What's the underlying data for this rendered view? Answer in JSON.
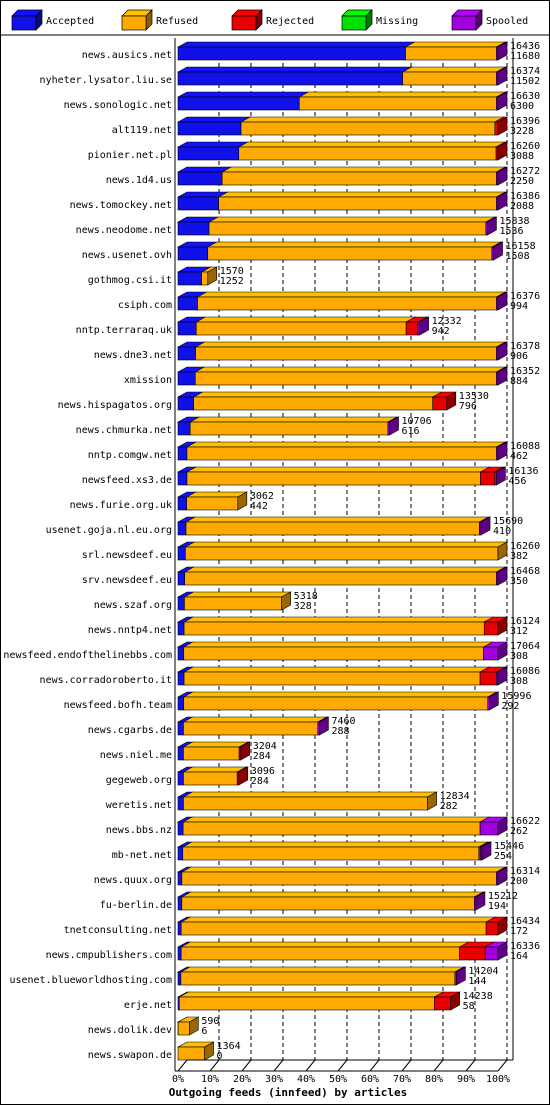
{
  "legend": [
    {
      "label": "Accepted",
      "color": "#1010e8"
    },
    {
      "label": "Refused",
      "color": "#ffaa00"
    },
    {
      "label": "Rejected",
      "color": "#e80000"
    },
    {
      "label": "Missing",
      "color": "#00e000"
    },
    {
      "label": "Spooled",
      "color": "#a000e0"
    }
  ],
  "chart_data": {
    "type": "bar",
    "orientation": "horizontal",
    "stacked": true,
    "xlabel": "Outgoing feeds (innfeed) by articles",
    "xlim": [
      0,
      100
    ],
    "x_ticks": [
      "0%",
      "10%",
      "20%",
      "30%",
      "40%",
      "50%",
      "60%",
      "70%",
      "80%",
      "90%",
      "100%"
    ],
    "grid": true,
    "legend_position": "top",
    "series_names": [
      "Accepted",
      "Refused",
      "Rejected",
      "Missing",
      "Spooled"
    ],
    "rows": [
      {
        "name": "news.ausics.net",
        "total": "16436",
        "accepted": "11680",
        "pct": [
          71.1,
          28.4,
          0,
          0,
          0.5
        ]
      },
      {
        "name": "nyheter.lysator.liu.se",
        "total": "16374",
        "accepted": "11502",
        "pct": [
          70.2,
          29.3,
          0,
          0,
          0.5
        ]
      },
      {
        "name": "news.sonologic.net",
        "total": "16630",
        "accepted": "6300",
        "pct": [
          37.9,
          61.6,
          0,
          0,
          0.5
        ]
      },
      {
        "name": "alt119.net",
        "total": "16396",
        "accepted": "3228",
        "pct": [
          19.7,
          79.3,
          1.0,
          0,
          0
        ]
      },
      {
        "name": "pionier.net.pl",
        "total": "16260",
        "accepted": "3088",
        "pct": [
          19.0,
          80.4,
          0.6,
          0,
          0
        ]
      },
      {
        "name": "news.1d4.us",
        "total": "16272",
        "accepted": "2250",
        "pct": [
          13.8,
          85.7,
          0,
          0,
          0.5
        ]
      },
      {
        "name": "news.tomockey.net",
        "total": "16386",
        "accepted": "2088",
        "pct": [
          12.7,
          86.8,
          0,
          0,
          0.5
        ]
      },
      {
        "name": "news.neodome.net",
        "total": "15838",
        "accepted": "1536",
        "pct": [
          9.7,
          86.5,
          0,
          0,
          0.5
        ]
      },
      {
        "name": "news.usenet.ovh",
        "total": "16158",
        "accepted": "1508",
        "pct": [
          9.3,
          88.8,
          0,
          0,
          0.5
        ]
      },
      {
        "name": "gothmog.csi.it",
        "total": "1570",
        "accepted": "1252",
        "pct": [
          7.4,
          1.9,
          0,
          0,
          0
        ]
      },
      {
        "name": "csiph.com",
        "total": "16376",
        "accepted": "994",
        "pct": [
          6.1,
          93.4,
          0,
          0,
          0.5
        ]
      },
      {
        "name": "nntp.terraraq.uk",
        "total": "12332",
        "accepted": "942",
        "pct": [
          5.7,
          65.6,
          3.7,
          0,
          0.5
        ]
      },
      {
        "name": "news.dne3.net",
        "total": "16378",
        "accepted": "906",
        "pct": [
          5.5,
          94.0,
          0,
          0,
          0.5
        ]
      },
      {
        "name": "xmission",
        "total": "16352",
        "accepted": "884",
        "pct": [
          5.4,
          94.1,
          0,
          0,
          0.5
        ]
      },
      {
        "name": "news.hispagatos.org",
        "total": "13530",
        "accepted": "796",
        "pct": [
          4.9,
          74.7,
          4.4,
          0,
          0
        ]
      },
      {
        "name": "news.chmurka.net",
        "total": "10706",
        "accepted": "616",
        "pct": [
          3.8,
          61.8,
          0,
          0,
          0.5
        ]
      },
      {
        "name": "nntp.comgw.net",
        "total": "16088",
        "accepted": "462",
        "pct": [
          2.8,
          96.7,
          0,
          0,
          0.5
        ]
      },
      {
        "name": "newsfeed.xs3.de",
        "total": "16136",
        "accepted": "456",
        "pct": [
          2.8,
          91.7,
          4.5,
          0,
          0.5
        ]
      },
      {
        "name": "news.furie.org.uk",
        "total": "3062",
        "accepted": "442",
        "pct": [
          2.7,
          16.0,
          0,
          0,
          0
        ]
      },
      {
        "name": "usenet.goja.nl.eu.org",
        "total": "15690",
        "accepted": "410",
        "pct": [
          2.5,
          91.7,
          0,
          0,
          0.5
        ]
      },
      {
        "name": "srl.newsdeef.eu",
        "total": "16260",
        "accepted": "382",
        "pct": [
          2.3,
          97.7,
          0,
          0,
          0
        ]
      },
      {
        "name": "srv.newsdeef.eu",
        "total": "16468",
        "accepted": "350",
        "pct": [
          2.1,
          97.4,
          0,
          0,
          0.5
        ]
      },
      {
        "name": "news.szaf.org",
        "total": "5318",
        "accepted": "328",
        "pct": [
          2.0,
          30.4,
          0,
          0,
          0
        ]
      },
      {
        "name": "news.nntp4.net",
        "total": "16124",
        "accepted": "312",
        "pct": [
          1.9,
          93.8,
          4.3,
          0,
          0
        ]
      },
      {
        "name": "newsfeed.endofthelinebbs.com",
        "total": "17064",
        "accepted": "308",
        "pct": [
          1.8,
          93.7,
          0,
          0,
          4.5
        ]
      },
      {
        "name": "news.corradoroberto.it",
        "total": "16086",
        "accepted": "308",
        "pct": [
          1.9,
          92.5,
          5.1,
          0,
          0.5
        ]
      },
      {
        "name": "newsfeed.bofh.team",
        "total": "15996",
        "accepted": "292",
        "pct": [
          1.8,
          95.0,
          0,
          0,
          0.5
        ]
      },
      {
        "name": "news.cgarbs.de",
        "total": "7460",
        "accepted": "288",
        "pct": [
          1.7,
          42.0,
          0,
          0,
          0.5
        ]
      },
      {
        "name": "news.niel.me",
        "total": "3204",
        "accepted": "284",
        "pct": [
          1.7,
          17.4,
          0.5,
          0,
          0
        ]
      },
      {
        "name": "gegeweb.org",
        "total": "3096",
        "accepted": "284",
        "pct": [
          1.7,
          16.8,
          0.5,
          0,
          0
        ]
      },
      {
        "name": "weretis.net",
        "total": "12834",
        "accepted": "282",
        "pct": [
          1.7,
          76.3,
          0,
          0,
          0
        ]
      },
      {
        "name": "news.bbs.nz",
        "total": "16622",
        "accepted": "262",
        "pct": [
          1.6,
          92.8,
          0,
          0,
          5.6
        ]
      },
      {
        "name": "mb-net.net",
        "total": "15446",
        "accepted": "254",
        "pct": [
          1.5,
          92.5,
          0.5,
          0,
          0.5
        ]
      },
      {
        "name": "news.quux.org",
        "total": "16314",
        "accepted": "200",
        "pct": [
          1.2,
          98.3,
          0,
          0,
          0.5
        ]
      },
      {
        "name": "fu-berlin.de",
        "total": "15212",
        "accepted": "194",
        "pct": [
          1.2,
          91.4,
          0,
          0,
          0.5
        ]
      },
      {
        "name": "tnetconsulting.net",
        "total": "16434",
        "accepted": "172",
        "pct": [
          1.0,
          95.3,
          3.7,
          0,
          0
        ]
      },
      {
        "name": "news.cmpublishers.com",
        "total": "16336",
        "accepted": "164",
        "pct": [
          1.0,
          87.0,
          8.0,
          0,
          4.0
        ]
      },
      {
        "name": "usenet.blueworldhosting.com",
        "total": "14204",
        "accepted": "144",
        "pct": [
          0.9,
          85.6,
          0,
          0,
          0.5
        ]
      },
      {
        "name": "erje.net",
        "total": "14238",
        "accepted": "58",
        "pct": [
          0.4,
          79.7,
          5.1,
          0,
          0
        ]
      },
      {
        "name": "news.dolik.dev",
        "total": "590",
        "accepted": "6",
        "pct": [
          0.04,
          3.5,
          0,
          0,
          0
        ]
      },
      {
        "name": "news.swapon.de",
        "total": "1364",
        "accepted": "0",
        "pct": [
          0,
          8.3,
          0,
          0,
          0
        ]
      }
    ]
  }
}
